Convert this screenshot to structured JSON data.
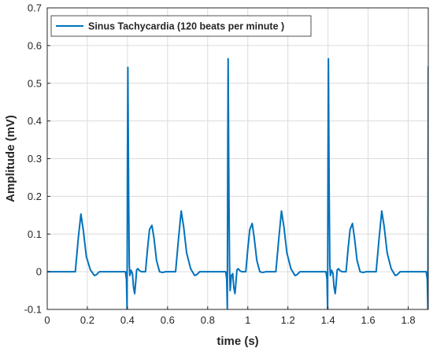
{
  "chart_data": {
    "type": "line",
    "title": "",
    "xlabel": "time (s)",
    "ylabel": "Amplitude (mV)",
    "xlim": [
      0,
      1.9
    ],
    "ylim": [
      -0.1,
      0.7
    ],
    "x_ticks": [
      0,
      0.2,
      0.4,
      0.6,
      0.8,
      1,
      1.2,
      1.4,
      1.6,
      1.8
    ],
    "x_tick_labels": [
      "0",
      "0.2",
      "0.4",
      "0.6",
      "0.8",
      "1",
      "1.2",
      "1.4",
      "1.6",
      "1.8"
    ],
    "y_ticks": [
      -0.1,
      0,
      0.1,
      0.2,
      0.3,
      0.4,
      0.5,
      0.6,
      0.7
    ],
    "y_tick_labels": [
      "-0.1",
      "0",
      "0.1",
      "0.2",
      "0.3",
      "0.4",
      "0.5",
      "0.6",
      "0.7"
    ],
    "grid": true,
    "legend_position": "top-left",
    "series": [
      {
        "name": "Sinus Tachycardia (120 beats per minute )",
        "color": "#0072BD",
        "x": [
          0,
          0.14,
          0.155,
          0.168,
          0.18,
          0.195,
          0.215,
          0.235,
          0.245,
          0.26,
          0.39,
          0.395,
          0.398,
          0.4,
          0.402,
          0.406,
          0.409,
          0.412,
          0.418,
          0.425,
          0.43,
          0.436,
          0.44,
          0.446,
          0.452,
          0.46,
          0.47,
          0.49,
          0.5,
          0.51,
          0.522,
          0.532,
          0.545,
          0.56,
          0.575,
          0.59,
          0.64,
          0.655,
          0.668,
          0.68,
          0.695,
          0.715,
          0.735,
          0.745,
          0.76,
          0.89,
          0.895,
          0.898,
          0.9,
          0.902,
          0.906,
          0.909,
          0.912,
          0.918,
          0.925,
          0.93,
          0.936,
          0.94,
          0.946,
          0.952,
          0.96,
          0.97,
          0.99,
          1,
          1.01,
          1.022,
          1.032,
          1.045,
          1.06,
          1.075,
          1.09,
          1.14,
          1.155,
          1.168,
          1.18,
          1.195,
          1.215,
          1.235,
          1.245,
          1.26,
          1.39,
          1.395,
          1.398,
          1.4,
          1.402,
          1.406,
          1.409,
          1.412,
          1.418,
          1.425,
          1.43,
          1.436,
          1.44,
          1.446,
          1.452,
          1.46,
          1.47,
          1.49,
          1.5,
          1.51,
          1.522,
          1.532,
          1.545,
          1.56,
          1.575,
          1.59,
          1.64,
          1.655,
          1.668,
          1.68,
          1.695,
          1.715,
          1.735,
          1.745,
          1.76,
          1.89,
          1.895,
          1.898,
          1.9
        ],
        "y": [
          0,
          0,
          0.09,
          0.153,
          0.11,
          0.04,
          0.005,
          -0.01,
          -0.008,
          0,
          0,
          -0.02,
          -0.1,
          0.3,
          0.542,
          0.2,
          0.02,
          -0.01,
          0.004,
          -0.005,
          -0.04,
          -0.058,
          -0.035,
          0.005,
          0.008,
          0.003,
          0,
          0,
          0.06,
          0.112,
          0.123,
          0.09,
          0.03,
          0,
          -0.002,
          0,
          0,
          0.09,
          0.161,
          0.12,
          0.05,
          0.008,
          -0.01,
          -0.008,
          0,
          0,
          -0.02,
          -0.1,
          0.3,
          0.565,
          0.2,
          0.02,
          -0.05,
          -0.01,
          -0.005,
          -0.04,
          -0.058,
          -0.035,
          0.005,
          0.008,
          0.003,
          0,
          0,
          0.06,
          0.112,
          0.128,
          0.09,
          0.03,
          0,
          -0.002,
          0,
          0,
          0.09,
          0.161,
          0.12,
          0.05,
          0.008,
          -0.01,
          -0.008,
          0,
          0,
          -0.02,
          -0.1,
          0.3,
          0.565,
          0.2,
          0.02,
          -0.01,
          0.004,
          -0.005,
          -0.04,
          -0.058,
          -0.035,
          0.005,
          0.008,
          0.003,
          0,
          0,
          0.06,
          0.112,
          0.128,
          0.09,
          0.03,
          0,
          -0.002,
          0,
          0,
          0.09,
          0.161,
          0.12,
          0.05,
          0.008,
          -0.01,
          -0.008,
          0,
          0,
          -0.02,
          -0.1,
          0.545
        ]
      }
    ]
  }
}
